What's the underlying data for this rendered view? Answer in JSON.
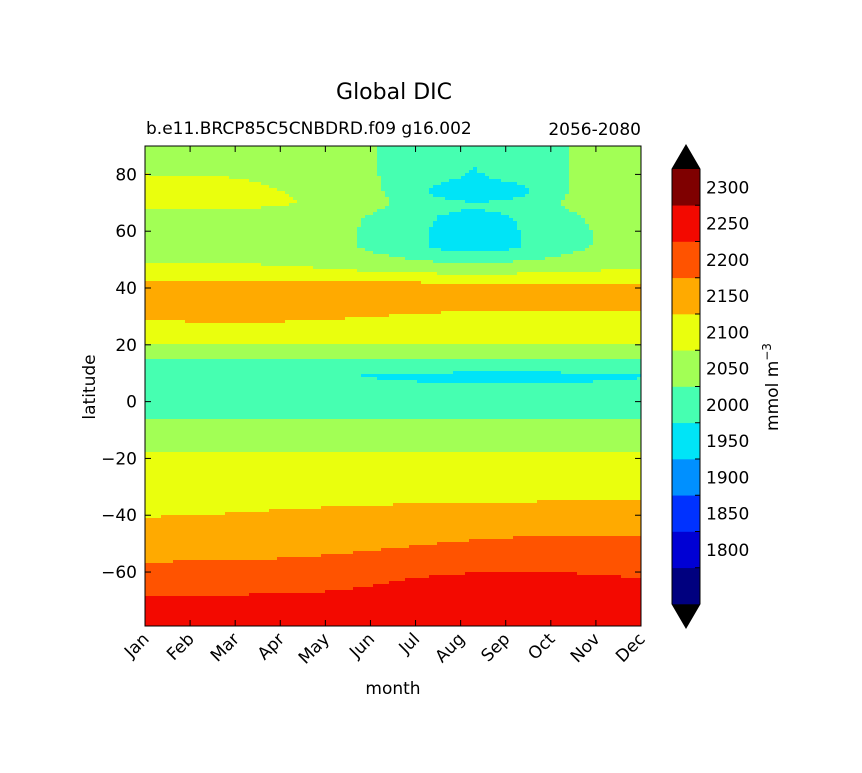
{
  "chart_data": {
    "type": "contourf",
    "title": "Global DIC",
    "subtitle_left": "b.e11.BRCP85C5CNBDRD.f09 g16.002",
    "subtitle_right": "2056-2080",
    "xlabel": "month",
    "ylabel": "latitude",
    "x_categories": [
      "Jan",
      "Feb",
      "Mar",
      "Apr",
      "May",
      "Jun",
      "Jul",
      "Aug",
      "Sep",
      "Oct",
      "Nov",
      "Dec"
    ],
    "xlim": [
      0,
      11
    ],
    "ylim": [
      -79,
      90
    ],
    "y_ticks": [
      -60,
      -40,
      -20,
      0,
      20,
      40,
      60,
      80
    ],
    "colorbar": {
      "label_main": "mmol m",
      "label_sup": "−3",
      "levels": [
        1750,
        1800,
        1850,
        1900,
        1950,
        2000,
        2050,
        2100,
        2150,
        2200,
        2250,
        2300,
        2350
      ],
      "tick_values": [
        1800,
        1850,
        1900,
        1950,
        2000,
        2050,
        2100,
        2150,
        2200,
        2250,
        2300
      ],
      "colors": [
        "#00007f",
        "#0000d4",
        "#0032ff",
        "#0090ff",
        "#00e4f7",
        "#46ffb1",
        "#a2ff55",
        "#eaff0d",
        "#ffaa00",
        "#ff5300",
        "#f30900",
        "#7f0000"
      ],
      "extend_low_color": "#000000",
      "extend_high_color": "#000000"
    },
    "latitude_bands_approx": [
      {
        "lat_range": [
          -79,
          -62
        ],
        "range": "2250-2300+",
        "note": "maximum May-Nov"
      },
      {
        "lat_range": [
          -62,
          -50
        ],
        "range": "2200-2250"
      },
      {
        "lat_range": [
          -50,
          -38
        ],
        "range": "2150-2200"
      },
      {
        "lat_range": [
          -38,
          -20
        ],
        "range": "2100-2150"
      },
      {
        "lat_range": [
          -20,
          -10
        ],
        "range": "2050-2100"
      },
      {
        "lat_range": [
          -10,
          8
        ],
        "range": "2000-2050",
        "note": "1950-2000 pocket near 8N"
      },
      {
        "lat_range": [
          8,
          20
        ],
        "range": "2000-2100"
      },
      {
        "lat_range": [
          20,
          42
        ],
        "range": "2100-2200"
      },
      {
        "lat_range": [
          42,
          90
        ],
        "range": "2000-2150",
        "note": "minimum ~1900-1950 Jul-Sep"
      }
    ]
  }
}
